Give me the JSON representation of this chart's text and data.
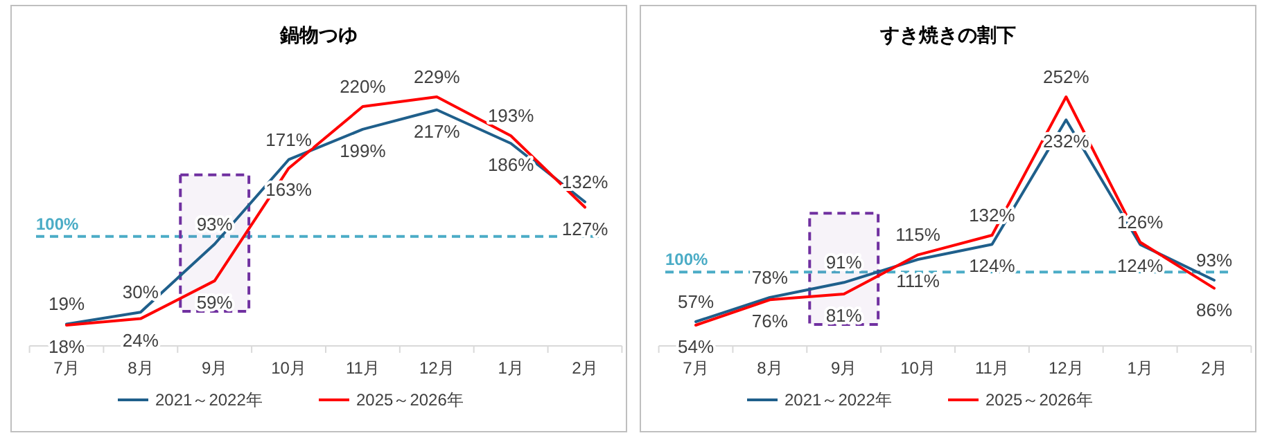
{
  "chart_data": [
    {
      "type": "line",
      "title": "鍋物つゆ",
      "categories": [
        "7月",
        "8月",
        "9月",
        "10月",
        "11月",
        "12月",
        "1月",
        "2月"
      ],
      "series": [
        {
          "name": "2021～2022年",
          "color": "#1f5f8b",
          "values": [
            19,
            30,
            93,
            171,
            199,
            217,
            186,
            132
          ],
          "value_labels": [
            "19%",
            "30%",
            "93%",
            "171%",
            "199%",
            "217%",
            "186%",
            "132%"
          ]
        },
        {
          "name": "2025～2026年",
          "color": "#ff0000",
          "values": [
            18,
            24,
            59,
            163,
            220,
            229,
            193,
            127
          ],
          "value_labels": [
            "18%",
            "24%",
            "59%",
            "163%",
            "220%",
            "229%",
            "193%",
            "127%"
          ]
        }
      ],
      "ref_lines": [
        {
          "axis": "y",
          "value": 100,
          "label": "100%",
          "color": "#4bacc6",
          "line_style": "dashed"
        }
      ],
      "bands": [
        {
          "axis": "x",
          "from": "9月",
          "to": "9月",
          "color": "#7030a0"
        }
      ],
      "legend": "bottom",
      "grid": false,
      "marker": "none",
      "line_style": "solid"
    },
    {
      "type": "line",
      "title": "すき焼きの割下",
      "categories": [
        "7月",
        "8月",
        "9月",
        "10月",
        "11月",
        "12月",
        "1月",
        "2月"
      ],
      "series": [
        {
          "name": "2021～2022年",
          "color": "#1f5f8b",
          "values": [
            57,
            78,
            91,
            111,
            124,
            232,
            124,
            93
          ],
          "value_labels": [
            "57%",
            "78%",
            "91%",
            "111%",
            "124%",
            "232%",
            "124%",
            "93%"
          ]
        },
        {
          "name": "2025～2026年",
          "color": "#ff0000",
          "values": [
            54,
            76,
            81,
            115,
            132,
            252,
            126,
            86
          ],
          "value_labels": [
            "54%",
            "76%",
            "81%",
            "115%",
            "132%",
            "252%",
            "126%",
            "86%"
          ]
        }
      ],
      "ref_lines": [
        {
          "axis": "y",
          "value": 100,
          "label": "100%",
          "color": "#4bacc6",
          "line_style": "dashed"
        }
      ],
      "bands": [
        {
          "axis": "x",
          "from": "9月",
          "to": "9月",
          "color": "#7030a0"
        }
      ],
      "legend": "bottom",
      "grid": false,
      "marker": "none",
      "line_style": "solid"
    }
  ]
}
